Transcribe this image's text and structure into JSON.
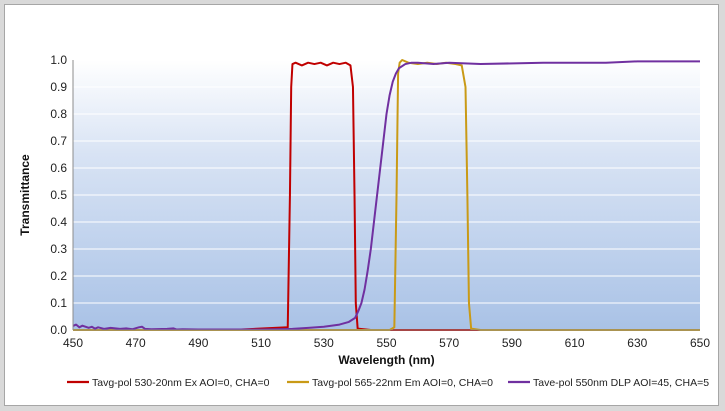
{
  "chart_data": {
    "type": "line",
    "title": "",
    "xlabel": "Wavelength (nm)",
    "ylabel": "Transmittance",
    "xlim": [
      450,
      650
    ],
    "ylim": [
      0.0,
      1.0
    ],
    "xticks": [
      450,
      470,
      490,
      510,
      530,
      550,
      570,
      590,
      610,
      630,
      650
    ],
    "yticks": [
      0.0,
      0.1,
      0.2,
      0.3,
      0.4,
      0.5,
      0.6,
      0.7,
      0.8,
      0.9,
      1.0
    ],
    "ytick_labels": [
      "0.0",
      "0.1",
      "0.2",
      "0.3",
      "0.4",
      "0.5",
      "0.6",
      "0.7",
      "0.8",
      "0.9",
      "1.0"
    ],
    "grid": "horizontal",
    "legend_position": "bottom",
    "plot_background": "gradient-white-to-light-blue",
    "series": [
      {
        "name": "Tavg-pol 530-20nm  Ex AOI=0, CHA=0",
        "color": "#c00000",
        "x": [
          450,
          500,
          518.5,
          519.2,
          519.6,
          520,
          521,
          523,
          525,
          527,
          529,
          531,
          533,
          535,
          537,
          538.5,
          539.3,
          539.8,
          540.2,
          540.8,
          545,
          650
        ],
        "y": [
          0.0,
          0.0,
          0.01,
          0.5,
          0.9,
          0.985,
          0.99,
          0.98,
          0.99,
          0.985,
          0.99,
          0.98,
          0.99,
          0.985,
          0.99,
          0.98,
          0.9,
          0.5,
          0.1,
          0.005,
          0.0,
          0.0
        ]
      },
      {
        "name": "Tavg-pol 565-22nm  Em AOI=0, CHA=0",
        "color": "#c99a16",
        "x": [
          450,
          551,
          552.5,
          553.2,
          553.7,
          554.2,
          555,
          557,
          560,
          563,
          566,
          569,
          572,
          574,
          575.2,
          575.8,
          576.3,
          577,
          580,
          650
        ],
        "y": [
          0.0,
          0.0,
          0.01,
          0.5,
          0.95,
          0.99,
          1.0,
          0.99,
          0.985,
          0.99,
          0.985,
          0.99,
          0.985,
          0.98,
          0.9,
          0.5,
          0.1,
          0.005,
          0.0,
          0.0
        ]
      },
      {
        "name": "Tave-pol 550nm DLP AOI=45, CHA=5",
        "color": "#7030a0",
        "x": [
          450,
          451,
          452,
          453,
          455,
          456,
          457,
          458,
          460,
          462,
          465,
          467,
          469,
          471,
          472,
          473,
          475,
          480,
          482,
          483,
          485,
          490,
          500,
          510,
          520,
          525,
          530,
          535,
          538,
          540,
          541,
          542,
          543,
          544,
          545,
          546,
          547,
          548,
          549,
          550,
          551,
          552,
          553,
          554,
          556,
          558,
          560,
          565,
          570,
          580,
          600,
          620,
          630,
          640,
          650
        ],
        "y": [
          0.015,
          0.02,
          0.01,
          0.016,
          0.008,
          0.012,
          0.005,
          0.01,
          0.004,
          0.008,
          0.004,
          0.006,
          0.003,
          0.01,
          0.012,
          0.004,
          0.003,
          0.004,
          0.006,
          0.002,
          0.003,
          0.002,
          0.002,
          0.002,
          0.004,
          0.008,
          0.012,
          0.02,
          0.03,
          0.045,
          0.07,
          0.1,
          0.15,
          0.22,
          0.3,
          0.4,
          0.5,
          0.6,
          0.7,
          0.8,
          0.87,
          0.92,
          0.95,
          0.97,
          0.985,
          0.99,
          0.99,
          0.985,
          0.99,
          0.985,
          0.99,
          0.99,
          0.995,
          0.995,
          0.995
        ]
      }
    ]
  }
}
